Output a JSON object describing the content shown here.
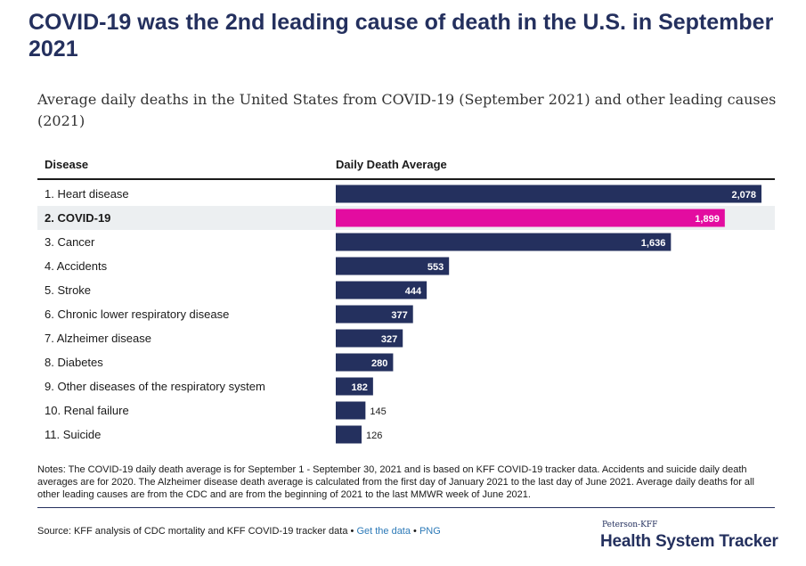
{
  "header": {
    "title": "COVID-19 was the 2nd leading cause of death in the U.S. in September 2021",
    "subtitle": "Average daily deaths in the United States from COVID-19 (September 2021) and other leading causes (2021)"
  },
  "table": {
    "col_disease": "Disease",
    "col_value": "Daily Death Average"
  },
  "colors": {
    "bar": "#24305e",
    "highlight_bar": "#e30ca0",
    "highlight_row": "#eceff1",
    "title": "#24305e"
  },
  "chart_data": {
    "type": "bar",
    "orientation": "horizontal",
    "categories": [
      "1. Heart disease",
      "2. COVID-19",
      "3. Cancer",
      "4. Accidents",
      "5. Stroke",
      "6. Chronic lower respiratory disease",
      "7. Alzheimer disease",
      "8. Diabetes",
      "9. Other diseases of the respiratory system",
      "10. Renal failure",
      "11. Suicide"
    ],
    "values": [
      2078,
      1899,
      1636,
      553,
      444,
      377,
      327,
      280,
      182,
      145,
      126
    ],
    "value_labels": [
      "2,078",
      "1,899",
      "1,636",
      "553",
      "444",
      "377",
      "327",
      "280",
      "182",
      "145",
      "126"
    ],
    "highlight_index": 1,
    "xlim": [
      0,
      2078
    ],
    "grid": false,
    "legend": "none"
  },
  "footer": {
    "notes": "Notes: The COVID-19 daily death average is for September 1 - September 30, 2021 and is based on KFF COVID-19 tracker data. Accidents and suicide daily death averages are for 2020. The Alzheimer disease death average is calculated from the first day of January 2021 to the last day of June 2021. Average daily deaths for all other leading causes are from the CDC and are from the beginning of 2021 to the last MMWR week of June 2021.",
    "source": "Source: KFF analysis of CDC mortality and KFF COVID-19 tracker data",
    "separator": "•",
    "get_data_label": "Get the data",
    "png_label": "PNG",
    "logo_top": "Peterson-KFF",
    "logo_main": "Health System Tracker"
  }
}
